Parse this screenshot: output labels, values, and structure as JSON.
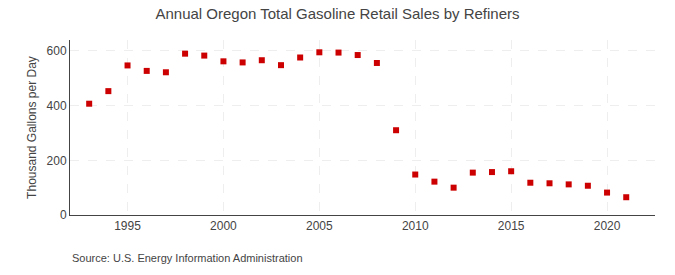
{
  "chart_data": {
    "type": "scatter",
    "title": "Annual Oregon Total Gasoline Retail Sales by Refiners",
    "ylabel": "Thousand Gallons per Day",
    "annotations": [
      "Source: U.S. Energy Information Administration"
    ],
    "x": [
      1993,
      1994,
      1995,
      1996,
      1997,
      1998,
      1999,
      2000,
      2001,
      2002,
      2003,
      2004,
      2005,
      2006,
      2007,
      2008,
      2009,
      2010,
      2011,
      2012,
      2013,
      2014,
      2015,
      2016,
      2017,
      2018,
      2019,
      2020,
      2021
    ],
    "values": [
      407,
      453,
      547,
      527,
      522,
      590,
      583,
      562,
      558,
      566,
      548,
      576,
      595,
      594,
      585,
      556,
      310,
      148,
      122,
      100,
      155,
      157,
      160,
      118,
      116,
      112,
      107,
      82,
      65
    ],
    "color": "#cc0000",
    "marker": "square",
    "xlim": [
      1992,
      2022.5
    ],
    "ylim": [
      0,
      640
    ],
    "xticks": [
      1995,
      2000,
      2005,
      2010,
      2015,
      2020
    ],
    "yticks": [
      0,
      200,
      400,
      600
    ],
    "grid": true
  }
}
